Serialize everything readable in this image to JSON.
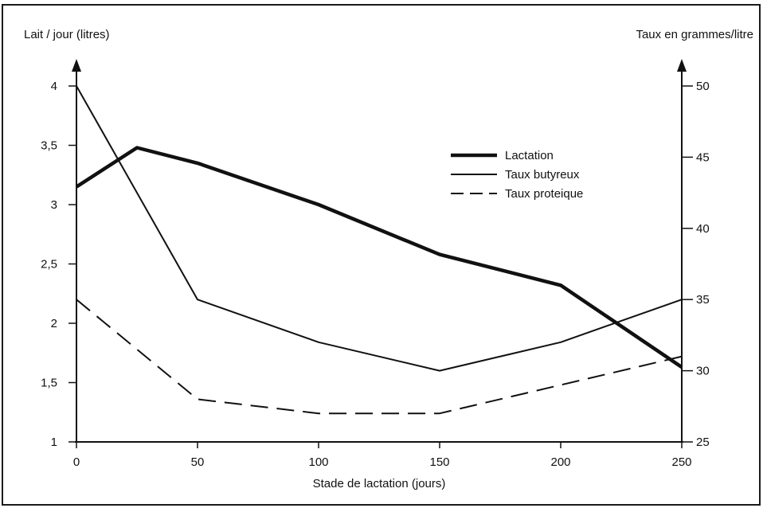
{
  "chart_data": {
    "type": "line",
    "x_label": "Stade de lactation (jours)",
    "y_left_label": "Lait / jour (litres)",
    "y_right_label": "Taux en grammes/litre",
    "x_ticks": [
      0,
      50,
      100,
      150,
      200,
      250
    ],
    "y_left_ticks": [
      1,
      1.5,
      2,
      2.5,
      3,
      3.5,
      4
    ],
    "y_left_tick_labels": [
      "1",
      "1,5",
      "2",
      "2,5",
      "3",
      "3,5",
      "4"
    ],
    "y_right_ticks": [
      25,
      30,
      35,
      40,
      45,
      50
    ],
    "xlim": [
      0,
      250
    ],
    "y_left_lim": [
      1,
      4.2
    ],
    "y_right_lim": [
      25,
      51
    ],
    "grid": false,
    "legend_position": "upper-right",
    "series": [
      {
        "name": "Lactation",
        "axis": "left",
        "style": "thick",
        "x": [
          0,
          25,
          50,
          100,
          150,
          200,
          250
        ],
        "y": [
          3.15,
          3.48,
          3.35,
          3.0,
          2.58,
          2.32,
          1.63
        ]
      },
      {
        "name": "Taux butyreux",
        "axis": "right",
        "style": "thin",
        "x": [
          0,
          50,
          100,
          150,
          200,
          250
        ],
        "y": [
          50,
          35,
          32,
          30,
          32,
          35
        ]
      },
      {
        "name": "Taux proteique",
        "axis": "right",
        "style": "dashed",
        "x": [
          0,
          50,
          100,
          150,
          200,
          250
        ],
        "y": [
          35,
          28,
          27,
          27,
          29,
          31
        ]
      }
    ]
  }
}
